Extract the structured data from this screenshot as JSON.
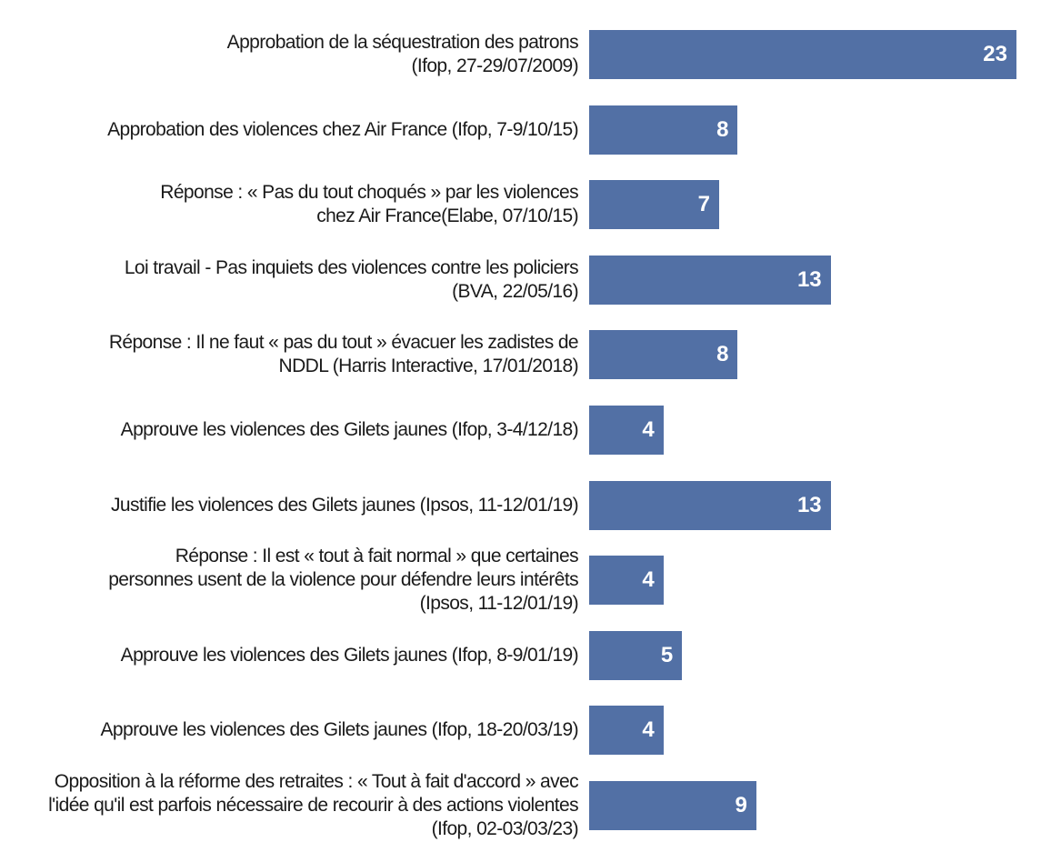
{
  "chart_data": {
    "type": "bar",
    "orientation": "horizontal",
    "title": "",
    "xlabel": "",
    "ylabel": "",
    "xlim": [
      0,
      23
    ],
    "grid": false,
    "bar_color": "#5270a5",
    "categories": [
      "Approbation de la séquestration des patrons\n(Ifop, 27-29/07/2009)",
      "Approbation des violences chez Air France (Ifop, 7-9/10/15)",
      "Réponse : « Pas du tout choqués » par les violences\nchez Air France(Elabe, 07/10/15)",
      "Loi travail - Pas inquiets des violences contre les policiers\n(BVA, 22/05/16)",
      "Réponse :  Il ne faut « pas du tout » évacuer les zadistes de\nNDDL (Harris Interactive, 17/01/2018)",
      "Approuve les violences des Gilets jaunes (Ifop, 3-4/12/18)",
      "Justifie les violences des Gilets jaunes (Ipsos, 11-12/01/19)",
      "Réponse : Il est « tout à fait normal » que certaines\npersonnes usent de la violence pour défendre leurs intérêts\n(Ipsos, 11-12/01/19)",
      "Approuve les violences des Gilets jaunes (Ifop, 8-9/01/19)",
      "Approuve les violences des Gilets jaunes (Ifop, 18-20/03/19)",
      "Opposition à la réforme des retraites : « Tout à fait d'accord » avec\nl'idée qu'il est parfois nécessaire de recourir à des actions violentes\n(Ifop, 02-03/03/23)"
    ],
    "values": [
      23,
      8,
      7,
      13,
      8,
      4,
      13,
      4,
      5,
      4,
      9
    ]
  }
}
